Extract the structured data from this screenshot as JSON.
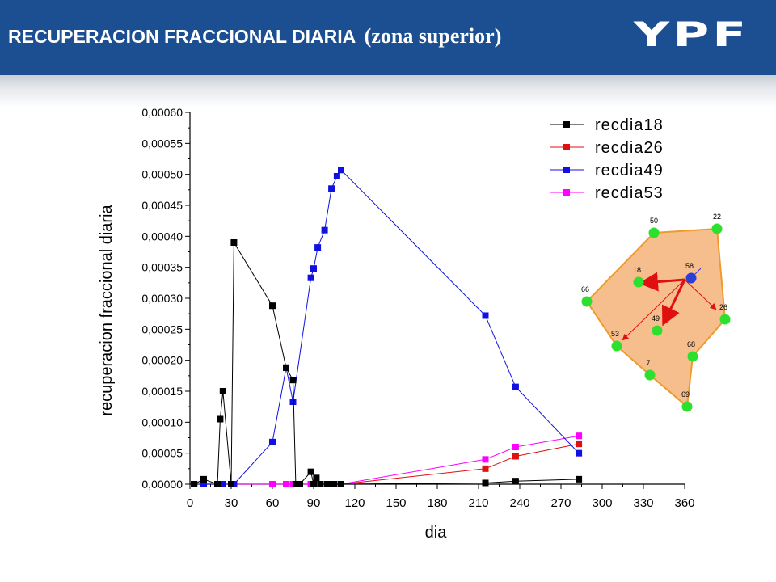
{
  "header": {
    "title_main": "RECUPERACION FRACCIONAL DIARIA",
    "title_sub": "(zona superior)",
    "logo_text": "YPF",
    "background_color": "#1b4f92"
  },
  "chart_data": {
    "type": "line",
    "xlabel": "dia",
    "ylabel": "recuperacion fraccional diaria",
    "xlim": [
      0,
      360
    ],
    "ylim": [
      0,
      0.0006
    ],
    "x_ticks": [
      "0",
      "30",
      "60",
      "90",
      "120",
      "150",
      "180",
      "210",
      "240",
      "270",
      "300",
      "330",
      "360"
    ],
    "y_ticks": [
      "0,00000",
      "0,00005",
      "0,00010",
      "0,00015",
      "0,00020",
      "0,00025",
      "0,00030",
      "0,00035",
      "0,00040",
      "0,00045",
      "0,00050",
      "0,00055",
      "0,00060"
    ],
    "grid": false,
    "legend_position": "top-right",
    "series": [
      {
        "name": "recdia18",
        "color": "#000000",
        "x": [
          3,
          10,
          20,
          22,
          24,
          30,
          32,
          60,
          70,
          75,
          77,
          80,
          88,
          90,
          92,
          95,
          100,
          105,
          110,
          215,
          237,
          283
        ],
        "y": [
          0.0,
          8e-06,
          0.0,
          0.000105,
          0.00015,
          0.0,
          0.00039,
          0.000288,
          0.000188,
          0.000168,
          0.0,
          0.0,
          2e-05,
          0.0,
          1e-05,
          0.0,
          0.0,
          0.0,
          0.0,
          2e-06,
          5e-06,
          8e-06
        ]
      },
      {
        "name": "recdia26",
        "color": "#e01010",
        "x": [
          3,
          10,
          20,
          22,
          24,
          30,
          32,
          60,
          70,
          75,
          77,
          80,
          88,
          90,
          92,
          95,
          100,
          105,
          110,
          215,
          237,
          283
        ],
        "y": [
          0.0,
          0.0,
          0.0,
          0.0,
          0.0,
          0.0,
          0.0,
          0.0,
          0.0,
          0.0,
          0.0,
          0.0,
          0.0,
          0.0,
          0.0,
          0.0,
          0.0,
          0.0,
          0.0,
          2.5e-05,
          4.5e-05,
          6.5e-05
        ]
      },
      {
        "name": "recdia49",
        "color": "#1010e0",
        "x": [
          3,
          10,
          20,
          22,
          24,
          30,
          32,
          60,
          70,
          75,
          88,
          90,
          93,
          98,
          103,
          107,
          110,
          215,
          237,
          283
        ],
        "y": [
          0.0,
          0.0,
          0.0,
          0.0,
          0.0,
          0.0,
          0.0,
          6.8e-05,
          0.000188,
          0.000133,
          0.000333,
          0.000348,
          0.000382,
          0.00041,
          0.000477,
          0.000497,
          0.000507,
          0.000272,
          0.000157,
          5e-05
        ]
      },
      {
        "name": "recdia53",
        "color": "#ff00ff",
        "x": [
          3,
          10,
          20,
          22,
          24,
          30,
          32,
          60,
          70,
          75,
          77,
          80,
          88,
          90,
          92,
          95,
          100,
          105,
          110,
          215,
          237,
          283
        ],
        "y": [
          0.0,
          0.0,
          0.0,
          0.0,
          0.0,
          0.0,
          0.0,
          0.0,
          0.0,
          0.0,
          0.0,
          0.0,
          0.0,
          0.0,
          0.0,
          0.0,
          0.0,
          0.0,
          0.0,
          4e-05,
          6e-05,
          7.8e-05
        ]
      }
    ]
  },
  "well_map": {
    "fill_color": "#f6be8c",
    "outline_color": "#ee9a2c",
    "point_color": "#2ee02e",
    "center_color": "#2d3ed6",
    "arrow_color": "#e01010",
    "wells": [
      {
        "label": "50"
      },
      {
        "label": "22"
      },
      {
        "label": "26"
      },
      {
        "label": "68"
      },
      {
        "label": "69"
      },
      {
        "label": "7"
      },
      {
        "label": "53"
      },
      {
        "label": "66"
      },
      {
        "label": "18"
      },
      {
        "label": "49"
      },
      {
        "label": "58"
      }
    ]
  }
}
